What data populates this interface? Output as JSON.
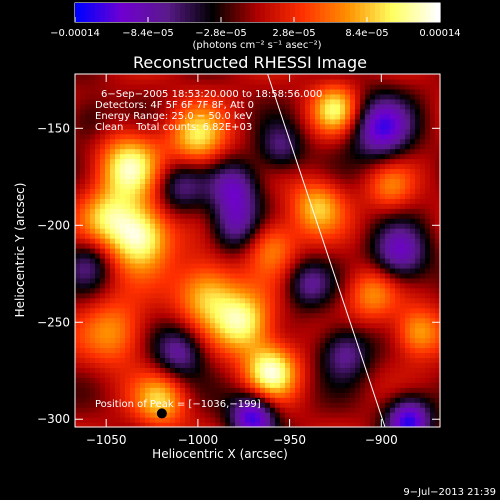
{
  "chart_data": {
    "type": "heatmap",
    "title": "Reconstructed RHESSI Image",
    "xlabel": "Heliocentric X (arcsec)",
    "ylabel": "Heliocentric Y (arcsec)",
    "xlim": [
      -1067,
      -868
    ],
    "ylim": [
      -304,
      -122
    ],
    "x_ticks": [
      -1050,
      -1000,
      -950,
      -900
    ],
    "y_ticks": [
      -150,
      -200,
      -250,
      -300
    ],
    "x_tick_labels": [
      "−1050",
      "−1000",
      "−950",
      "−900"
    ],
    "y_tick_labels": [
      "−150",
      "−200",
      "−250",
      "−300"
    ],
    "colorbar": {
      "min": -0.00014,
      "max": 0.00014,
      "ticks": [
        -0.00014,
        -8.4e-05,
        -2.8e-05,
        2.8e-05,
        8.4e-05,
        0.00014
      ],
      "tick_labels": [
        "−0.00014",
        "−8.4e−05",
        "−2.8e−05",
        "2.8e−05",
        "8.4e−05",
        "0.00014"
      ],
      "units": "(photons cm⁻² s⁻¹ asec⁻²)",
      "colormap": [
        "#0000ff",
        "#7000d0",
        "#5a1a8a",
        "#000000",
        "#b00000",
        "#ff3000",
        "#ff9000",
        "#ffff60",
        "#ffffff"
      ]
    },
    "annotations": [
      "6−Sep−2005 18:53:20.000 to 18:58:56.000",
      "Detectors: 4F 5F 6F 7F 8F, Att 0",
      "Energy Range: 25.0 − 50.0 keV",
      "Clean    Total counts: 6.82E+03"
    ],
    "peak_label": "Position of Peak = [−1036,−199]",
    "peak_position": [
      -1036,
      -199
    ],
    "limb_line": [
      [
        -962,
        -122
      ],
      [
        -898,
        -304
      ]
    ],
    "blobs": [
      {
        "x": -1038,
        "y": -170,
        "v": 0.8,
        "s": 12
      },
      {
        "x": -1032,
        "y": -205,
        "v": 1.0,
        "s": 12
      },
      {
        "x": -1050,
        "y": -195,
        "v": 0.5,
        "s": 10
      },
      {
        "x": -1000,
        "y": -155,
        "v": 0.7,
        "s": 11
      },
      {
        "x": -995,
        "y": -235,
        "v": 0.7,
        "s": 12
      },
      {
        "x": -975,
        "y": -250,
        "v": 0.8,
        "s": 11
      },
      {
        "x": -960,
        "y": -275,
        "v": 0.9,
        "s": 10
      },
      {
        "x": -935,
        "y": -190,
        "v": 0.6,
        "s": 10
      },
      {
        "x": -925,
        "y": -140,
        "v": 0.7,
        "s": 9
      },
      {
        "x": -1045,
        "y": -255,
        "v": 0.5,
        "s": 12
      },
      {
        "x": -1020,
        "y": -290,
        "v": 0.6,
        "s": 10
      },
      {
        "x": -905,
        "y": -235,
        "v": 0.5,
        "s": 10
      },
      {
        "x": -880,
        "y": -255,
        "v": 0.6,
        "s": 9
      },
      {
        "x": -895,
        "y": -180,
        "v": 0.4,
        "s": 9
      },
      {
        "x": -960,
        "y": -210,
        "v": 0.5,
        "s": 10
      },
      {
        "x": -980,
        "y": -180,
        "v": -0.6,
        "s": 10
      },
      {
        "x": -980,
        "y": -200,
        "v": -0.6,
        "s": 10
      },
      {
        "x": -1010,
        "y": -180,
        "v": -0.5,
        "s": 10
      },
      {
        "x": -955,
        "y": -160,
        "v": -0.5,
        "s": 9
      },
      {
        "x": -900,
        "y": -150,
        "v": -0.8,
        "s": 12
      },
      {
        "x": -890,
        "y": -215,
        "v": -0.7,
        "s": 11
      },
      {
        "x": -920,
        "y": -265,
        "v": -0.6,
        "s": 10
      },
      {
        "x": -885,
        "y": -300,
        "v": -0.9,
        "s": 9
      },
      {
        "x": -1010,
        "y": -265,
        "v": -0.6,
        "s": 10
      },
      {
        "x": -970,
        "y": -298,
        "v": -0.9,
        "s": 9
      },
      {
        "x": -1060,
        "y": -220,
        "v": -0.4,
        "s": 9
      },
      {
        "x": -1060,
        "y": -145,
        "v": -0.3,
        "s": 9
      },
      {
        "x": -940,
        "y": -230,
        "v": -0.5,
        "s": 9
      }
    ]
  },
  "footer": {
    "timestamp": "9−Jul−2013 21:39"
  }
}
